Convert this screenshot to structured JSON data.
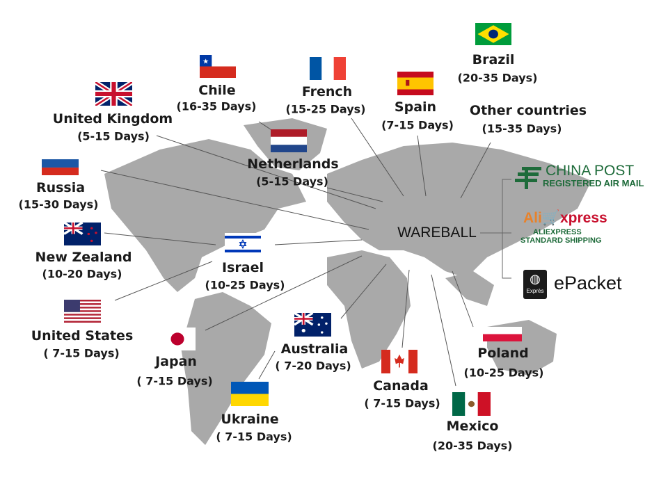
{
  "hub": {
    "label": "WAREBALL"
  },
  "colors": {
    "map": "#a9a9a9",
    "line": "#555555",
    "chinapost": "#1e6b3a",
    "ali_orange": "#e8822a",
    "ali_red": "#c8102e"
  },
  "destinations": [
    {
      "name": "Brazil",
      "days": "(20-35 Days)",
      "flag": "br"
    },
    {
      "name": "Chile",
      "days": "(16-35 Days)",
      "flag": "cl"
    },
    {
      "name": "French",
      "days": "(15-25 Days)",
      "flag": "fr"
    },
    {
      "name": "Spain",
      "days": "(7-15 Days)",
      "flag": "es"
    },
    {
      "name": "Other countries",
      "days": "(15-35 Days)",
      "flag": ""
    },
    {
      "name": "United Kingdom",
      "days": "(5-15 Days)",
      "flag": "gb"
    },
    {
      "name": "Netherlands",
      "days": "(5-15 Days)",
      "flag": "nl"
    },
    {
      "name": "Russia",
      "days": "(15-30 Days)",
      "flag": "ru"
    },
    {
      "name": "New Zealand",
      "days": "(10-20 Days)",
      "flag": "nz"
    },
    {
      "name": "Israel",
      "days": "(10-25 Days)",
      "flag": "il"
    },
    {
      "name": "United States",
      "days": "( 7-15 Days)",
      "flag": "us"
    },
    {
      "name": "Japan",
      "days": "( 7-15 Days)",
      "flag": "jp"
    },
    {
      "name": "Australia",
      "days": "( 7-20 Days)",
      "flag": "au"
    },
    {
      "name": "Canada",
      "days": "( 7-15 Days)",
      "flag": "ca"
    },
    {
      "name": "Poland",
      "days": "(10-25 Days)",
      "flag": "pl"
    },
    {
      "name": "Mexico",
      "days": "(20-35 Days)",
      "flag": "mx"
    },
    {
      "name": "Ukraine",
      "days": "( 7-15 Days)",
      "flag": "ua"
    }
  ],
  "carriers": {
    "china_post": {
      "title": "CHINA POST",
      "subtitle": "REGISTERED AIR MAIL"
    },
    "aliexpress": {
      "logo": "AliExpress",
      "line1": "ALIEXPRESS",
      "line2": "STANDARD SHIPPING"
    },
    "epacket": {
      "label": "ePacket",
      "badge": "Exprès"
    }
  }
}
